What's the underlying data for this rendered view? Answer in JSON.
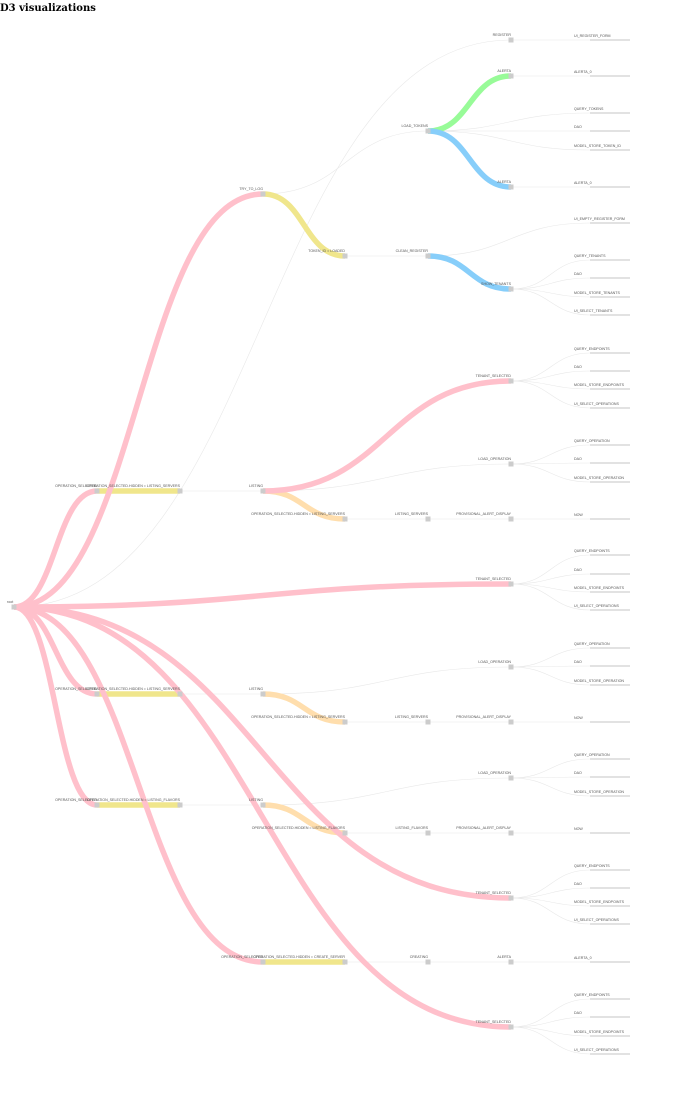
{
  "title": "D3 visualizations",
  "colors": {
    "pink": "#ffc0cb",
    "yellow": "#f0e68c",
    "green": "#98fb98",
    "blue": "#87cefa",
    "orange": "#ffdead",
    "thin": "#e8e8e8",
    "node": "#cccccc",
    "leaf": "#e2e2e2"
  },
  "root": {
    "name": "root"
  },
  "tree": [
    {
      "id": "n1",
      "parent": "root",
      "name": "OPERATION_SELECTED",
      "color": "pink",
      "depth": 1
    },
    {
      "id": "n2",
      "parent": "n1",
      "name": "OPERATION_SELECTED.HIDDEN = LISTING_SERVERS",
      "color": "yellow",
      "depth": 2
    },
    {
      "id": "n3",
      "parent": "n2",
      "name": "LISTING",
      "color": "thin",
      "depth": 3
    },
    {
      "id": "n4",
      "parent": "n3",
      "name": "OPERATION_SELECTED.HIDDEN = LISTING_SERVERS",
      "color": "orange",
      "depth": 4
    },
    {
      "id": "n5",
      "parent": "n4",
      "name": "LISTING_SERVERS",
      "color": "thin",
      "depth": 5
    },
    {
      "id": "n6",
      "parent": "n5",
      "name": "PROVISIONAL_ALERT_DISPLAY",
      "color": "thin",
      "depth": 6
    },
    {
      "id": "n7",
      "parent": "n6",
      "name": "NOW",
      "color": "thin",
      "depth": 7
    },
    {
      "id": "n8",
      "parent": "n3",
      "name": "LOAD_OPERATION",
      "color": "thin",
      "depth": 6
    },
    {
      "id": "n9",
      "parent": "n8",
      "name": "QUERY_OPERATION",
      "color": "thin",
      "depth": 7
    },
    {
      "id": "n10",
      "parent": "n8",
      "name": "DAO",
      "color": "thin",
      "depth": 7
    },
    {
      "id": "n11",
      "parent": "n8",
      "name": "MODEL_STORE_OPERATION",
      "color": "thin",
      "depth": 7
    },
    {
      "id": "n12",
      "parent": "n3",
      "name": "TENANT_SELECTED",
      "color": "pink",
      "depth": 6
    },
    {
      "id": "n13",
      "parent": "n12",
      "name": "QUERY_ENDPOINTS",
      "color": "thin",
      "depth": 7
    },
    {
      "id": "n14",
      "parent": "n12",
      "name": "DAO",
      "color": "thin",
      "depth": 7
    },
    {
      "id": "n15",
      "parent": "n12",
      "name": "MODEL_STORE_ENDPOINTS",
      "color": "thin",
      "depth": 7
    },
    {
      "id": "n16",
      "parent": "n12",
      "name": "UI_SELECT_OPERATIONS",
      "color": "thin",
      "depth": 7
    },
    {
      "id": "n17",
      "parent": "root",
      "name": "TRY_TO_LOG",
      "color": "pink",
      "depth": 3
    },
    {
      "id": "n18",
      "parent": "n17",
      "name": "TOKEN_ID = LOADED",
      "color": "yellow",
      "depth": 4
    },
    {
      "id": "n19",
      "parent": "n18",
      "name": "CLEAN_REGISTER",
      "color": "thin",
      "depth": 5
    },
    {
      "id": "n20",
      "parent": "n19",
      "name": "SHOW_TENANTS",
      "color": "blue",
      "depth": 6
    },
    {
      "id": "n21",
      "parent": "n20",
      "name": "QUERY_TENANTS",
      "color": "thin",
      "depth": 7
    },
    {
      "id": "n22",
      "parent": "n20",
      "name": "DAO",
      "color": "thin",
      "depth": 7
    },
    {
      "id": "n23",
      "parent": "n20",
      "name": "MODEL_STORE_TENANTS",
      "color": "thin",
      "depth": 7
    },
    {
      "id": "n24",
      "parent": "n20",
      "name": "UI_SELECT_TENANTS",
      "color": "thin",
      "depth": 7
    },
    {
      "id": "n25",
      "parent": "n19",
      "name": "UI_EMPTY_REGISTER_FORM",
      "color": "thin",
      "depth": 7
    },
    {
      "id": "n26",
      "parent": "n17",
      "name": "LOAD_TOKENS",
      "color": "thin",
      "depth": 5
    },
    {
      "id": "n27",
      "parent": "n26",
      "name": "ALERTA",
      "color": "green",
      "depth": 6
    },
    {
      "id": "n28",
      "parent": "n27",
      "name": "ALERTA_0",
      "color": "thin",
      "depth": 7
    },
    {
      "id": "n29",
      "parent": "n26",
      "name": "ALERTA",
      "color": "blue",
      "depth": 6
    },
    {
      "id": "n30",
      "parent": "n29",
      "name": "ALERTA_0",
      "color": "thin",
      "depth": 7
    },
    {
      "id": "n31",
      "parent": "n26",
      "name": "QUERY_TOKENS",
      "color": "thin",
      "depth": 7
    },
    {
      "id": "n32",
      "parent": "n26",
      "name": "DAO",
      "color": "thin",
      "depth": 7
    },
    {
      "id": "n33",
      "parent": "n26",
      "name": "MODEL_STORE_TOKEN_ID",
      "color": "thin",
      "depth": 7
    },
    {
      "id": "n34",
      "parent": "root",
      "name": "REGISTER",
      "color": "thin",
      "depth": 6
    },
    {
      "id": "n35",
      "parent": "n34",
      "name": "UI_REGISTER_FORM",
      "color": "thin",
      "depth": 7
    },
    {
      "id": "n36",
      "parent": "root",
      "name": "TENANT_SELECTED",
      "color": "pink",
      "depth": 6
    },
    {
      "id": "n37",
      "parent": "n36",
      "name": "QUERY_ENDPOINTS",
      "color": "thin",
      "depth": 7
    },
    {
      "id": "n38",
      "parent": "n36",
      "name": "DAO",
      "color": "thin",
      "depth": 7
    },
    {
      "id": "n39",
      "parent": "n36",
      "name": "MODEL_STORE_ENDPOINTS",
      "color": "thin",
      "depth": 7
    },
    {
      "id": "n40",
      "parent": "n36",
      "name": "UI_SELECT_OPERATIONS",
      "color": "thin",
      "depth": 7
    },
    {
      "id": "n41",
      "parent": "root",
      "name": "OPERATION_SELECTED",
      "color": "pink",
      "depth": 1
    },
    {
      "id": "n42",
      "parent": "n41",
      "name": "OPERATION_SELECTED.HIDDEN = LISTING_SERVERS",
      "color": "yellow",
      "depth": 2
    },
    {
      "id": "n43",
      "parent": "n42",
      "name": "LISTING",
      "color": "thin",
      "depth": 3
    },
    {
      "id": "n44",
      "parent": "n43",
      "name": "OPERATION_SELECTED.HIDDEN = LISTING_SERVERS",
      "color": "orange",
      "depth": 4
    },
    {
      "id": "n45",
      "parent": "n44",
      "name": "LISTING_SERVERS",
      "color": "thin",
      "depth": 5
    },
    {
      "id": "n46",
      "parent": "n45",
      "name": "PROVISIONAL_ALERT_DISPLAY",
      "color": "thin",
      "depth": 6
    },
    {
      "id": "n47",
      "parent": "n46",
      "name": "NOW",
      "color": "thin",
      "depth": 7
    },
    {
      "id": "n48",
      "parent": "n43",
      "name": "LOAD_OPERATION",
      "color": "thin",
      "depth": 6
    },
    {
      "id": "n49",
      "parent": "n48",
      "name": "QUERY_OPERATION",
      "color": "thin",
      "depth": 7
    },
    {
      "id": "n50",
      "parent": "n48",
      "name": "DAO",
      "color": "thin",
      "depth": 7
    },
    {
      "id": "n51",
      "parent": "n48",
      "name": "MODEL_STORE_OPERATION",
      "color": "thin",
      "depth": 7
    },
    {
      "id": "n52",
      "parent": "root",
      "name": "OPERATION_SELECTED",
      "color": "pink",
      "depth": 1
    },
    {
      "id": "n53",
      "parent": "n52",
      "name": "OPERATION_SELECTED.HIDDEN = LISTING_FLAVORS",
      "color": "yellow",
      "depth": 2
    },
    {
      "id": "n54",
      "parent": "n53",
      "name": "LISTING",
      "color": "thin",
      "depth": 3
    },
    {
      "id": "n55",
      "parent": "n54",
      "name": "OPERATION_SELECTED.HIDDEN = LISTING_FLAVORS",
      "color": "orange",
      "depth": 4
    },
    {
      "id": "n56",
      "parent": "n55",
      "name": "LISTING_FLAVORS",
      "color": "thin",
      "depth": 5
    },
    {
      "id": "n57",
      "parent": "n56",
      "name": "PROVISIONAL_ALERT_DISPLAY",
      "color": "thin",
      "depth": 6
    },
    {
      "id": "n58",
      "parent": "n57",
      "name": "NOW",
      "color": "thin",
      "depth": 7
    },
    {
      "id": "n59",
      "parent": "n54",
      "name": "LOAD_OPERATION",
      "color": "thin",
      "depth": 6
    },
    {
      "id": "n60",
      "parent": "n59",
      "name": "QUERY_OPERATION",
      "color": "thin",
      "depth": 7
    },
    {
      "id": "n61",
      "parent": "n59",
      "name": "DAO",
      "color": "thin",
      "depth": 7
    },
    {
      "id": "n62",
      "parent": "n59",
      "name": "MODEL_STORE_OPERATION",
      "color": "thin",
      "depth": 7
    },
    {
      "id": "n63",
      "parent": "root",
      "name": "TENANT_SELECTED",
      "color": "pink",
      "depth": 6
    },
    {
      "id": "n64",
      "parent": "n63",
      "name": "QUERY_ENDPOINTS",
      "color": "thin",
      "depth": 7
    },
    {
      "id": "n65",
      "parent": "n63",
      "name": "DAO",
      "color": "thin",
      "depth": 7
    },
    {
      "id": "n66",
      "parent": "n63",
      "name": "MODEL_STORE_ENDPOINTS",
      "color": "thin",
      "depth": 7
    },
    {
      "id": "n67",
      "parent": "n63",
      "name": "UI_SELECT_OPERATIONS",
      "color": "thin",
      "depth": 7
    },
    {
      "id": "n68",
      "parent": "root",
      "name": "OPERATION_SELECTED",
      "color": "pink",
      "depth": 3
    },
    {
      "id": "n69",
      "parent": "n68",
      "name": "OPERATION_SELECTED.HIDDEN = CREATE_SERVER",
      "color": "yellow",
      "depth": 4
    },
    {
      "id": "n70",
      "parent": "n69",
      "name": "CREATING",
      "color": "thin",
      "depth": 5
    },
    {
      "id": "n71",
      "parent": "n70",
      "name": "ALERTA",
      "color": "thin",
      "depth": 6
    },
    {
      "id": "n72",
      "parent": "n71",
      "name": "ALERTA_0",
      "color": "thin",
      "depth": 7
    },
    {
      "id": "n73",
      "parent": "root",
      "name": "TENANT_SELECTED",
      "color": "pink",
      "depth": 6
    },
    {
      "id": "n74",
      "parent": "n73",
      "name": "QUERY_ENDPOINTS",
      "color": "thin",
      "depth": 7
    },
    {
      "id": "n75",
      "parent": "n73",
      "name": "DAO",
      "color": "thin",
      "depth": 7
    },
    {
      "id": "n76",
      "parent": "n73",
      "name": "MODEL_STORE_ENDPOINTS",
      "color": "thin",
      "depth": 7
    },
    {
      "id": "n77",
      "parent": "n73",
      "name": "UI_SELECT_OPERATIONS",
      "color": "thin",
      "depth": 7
    }
  ]
}
